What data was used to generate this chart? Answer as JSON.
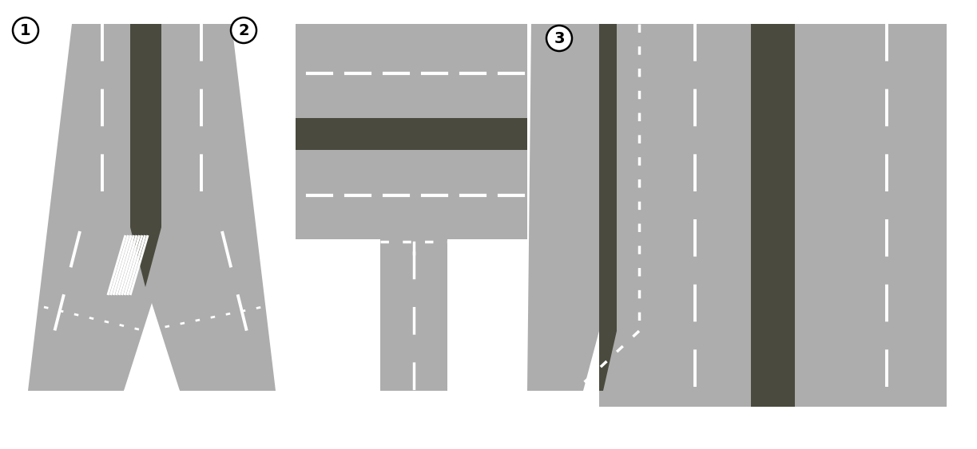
{
  "bg_color": "#ffffff",
  "road_gray": "#adadad",
  "dark_median": "#4a4a3e",
  "white": "#ffffff",
  "fig_width": 12.23,
  "fig_height": 5.63,
  "label1": "1",
  "label2": "2",
  "label3": "3"
}
